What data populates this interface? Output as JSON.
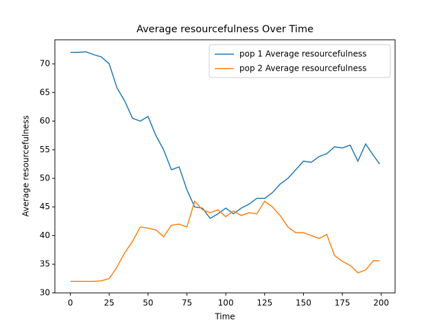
{
  "chart_data": {
    "type": "line",
    "title": "Average resourcefulness Over Time",
    "x_label": "Time",
    "y_label": "Average resourcefulness",
    "x": [
      0,
      5,
      10,
      15,
      20,
      25,
      30,
      35,
      40,
      45,
      50,
      55,
      60,
      65,
      70,
      75,
      80,
      85,
      90,
      95,
      100,
      105,
      110,
      115,
      120,
      125,
      130,
      135,
      140,
      145,
      150,
      155,
      160,
      165,
      170,
      175,
      180,
      185,
      190,
      195,
      199
    ],
    "series": [
      {
        "name": "pop 1 Average resourcefulness",
        "color": "#1f77b4",
        "values": [
          72,
          72,
          72.1,
          71.6,
          71.2,
          70,
          65.8,
          63.5,
          60.5,
          60,
          60.8,
          57.5,
          55,
          51.5,
          52,
          48,
          45,
          44.8,
          43,
          43.8,
          44.8,
          43.8,
          44.8,
          45.5,
          46.5,
          46.5,
          47.5,
          49,
          50,
          51.5,
          53,
          52.8,
          53.8,
          54.3,
          55.5,
          55.3,
          55.8,
          53,
          56,
          54,
          52.5
        ]
      },
      {
        "name": "pop 2 Average resourcefulness",
        "color": "#ff7f0e",
        "values": [
          32,
          32,
          32,
          32,
          32.1,
          32.5,
          34.5,
          37,
          39,
          41.5,
          41.3,
          41,
          39.8,
          41.8,
          42,
          41.5,
          46,
          44.5,
          44,
          44.5,
          43.3,
          44.3,
          43.5,
          44,
          43.8,
          46,
          45,
          43.5,
          41.5,
          40.5,
          40.5,
          40,
          39.5,
          40.2,
          36.5,
          35.5,
          34.8,
          33.5,
          34,
          35.6,
          35.6
        ]
      }
    ],
    "xlim": [
      -9.95,
      208.95
    ],
    "ylim": [
      29.99,
      74.2
    ],
    "xticks": [
      0,
      25,
      50,
      75,
      100,
      125,
      150,
      175,
      200
    ],
    "yticks": [
      30,
      35,
      40,
      45,
      50,
      55,
      60,
      65,
      70
    ],
    "grid": false,
    "legend": "upper right"
  }
}
